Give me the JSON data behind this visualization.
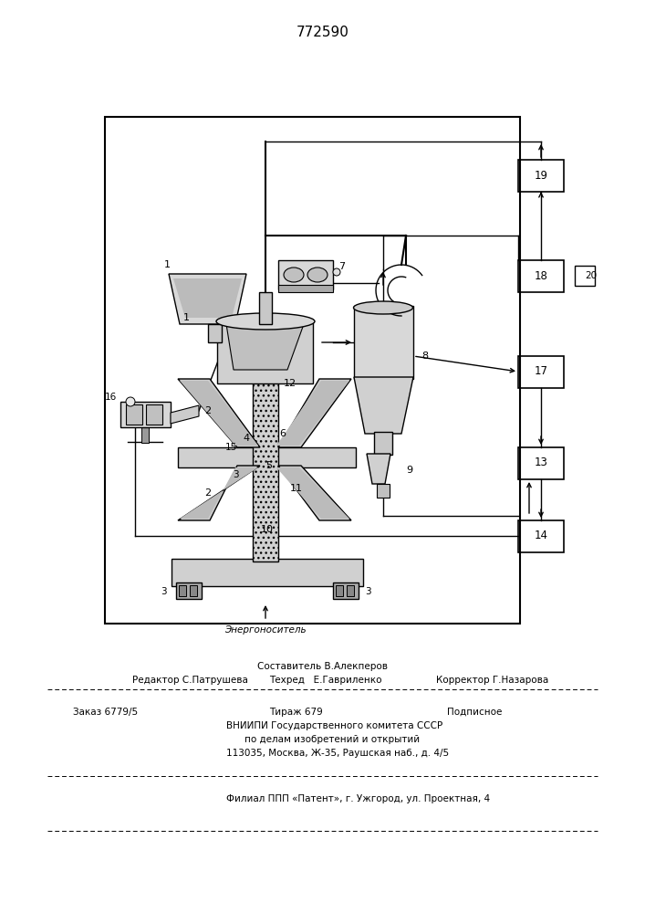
{
  "patent_number": "772590",
  "bg_color": "#ffffff",
  "lc": "#000000",
  "energonositel": "Энергоноситель",
  "footer": {
    "col1_line1": "Составитель В.Алекперов",
    "red": "Редактор С.Патрушева",
    "teh": "Техред   Е.Гавриленко",
    "kor": "Корректор Г.Назарова",
    "zak": "Заказ 6779/5",
    "tir": "Тираж 679",
    "pod": "Подписное",
    "vn1": "ВНИИПИ Государственного комитета СССР",
    "vn2": "по делам изобретений и открытий",
    "addr": "113035, Москва, Ж-35, Раушская наб., д. 4/5",
    "fil": "Филиал ППП «Патент», г. Ужгород, ул. Проектная, 4"
  }
}
